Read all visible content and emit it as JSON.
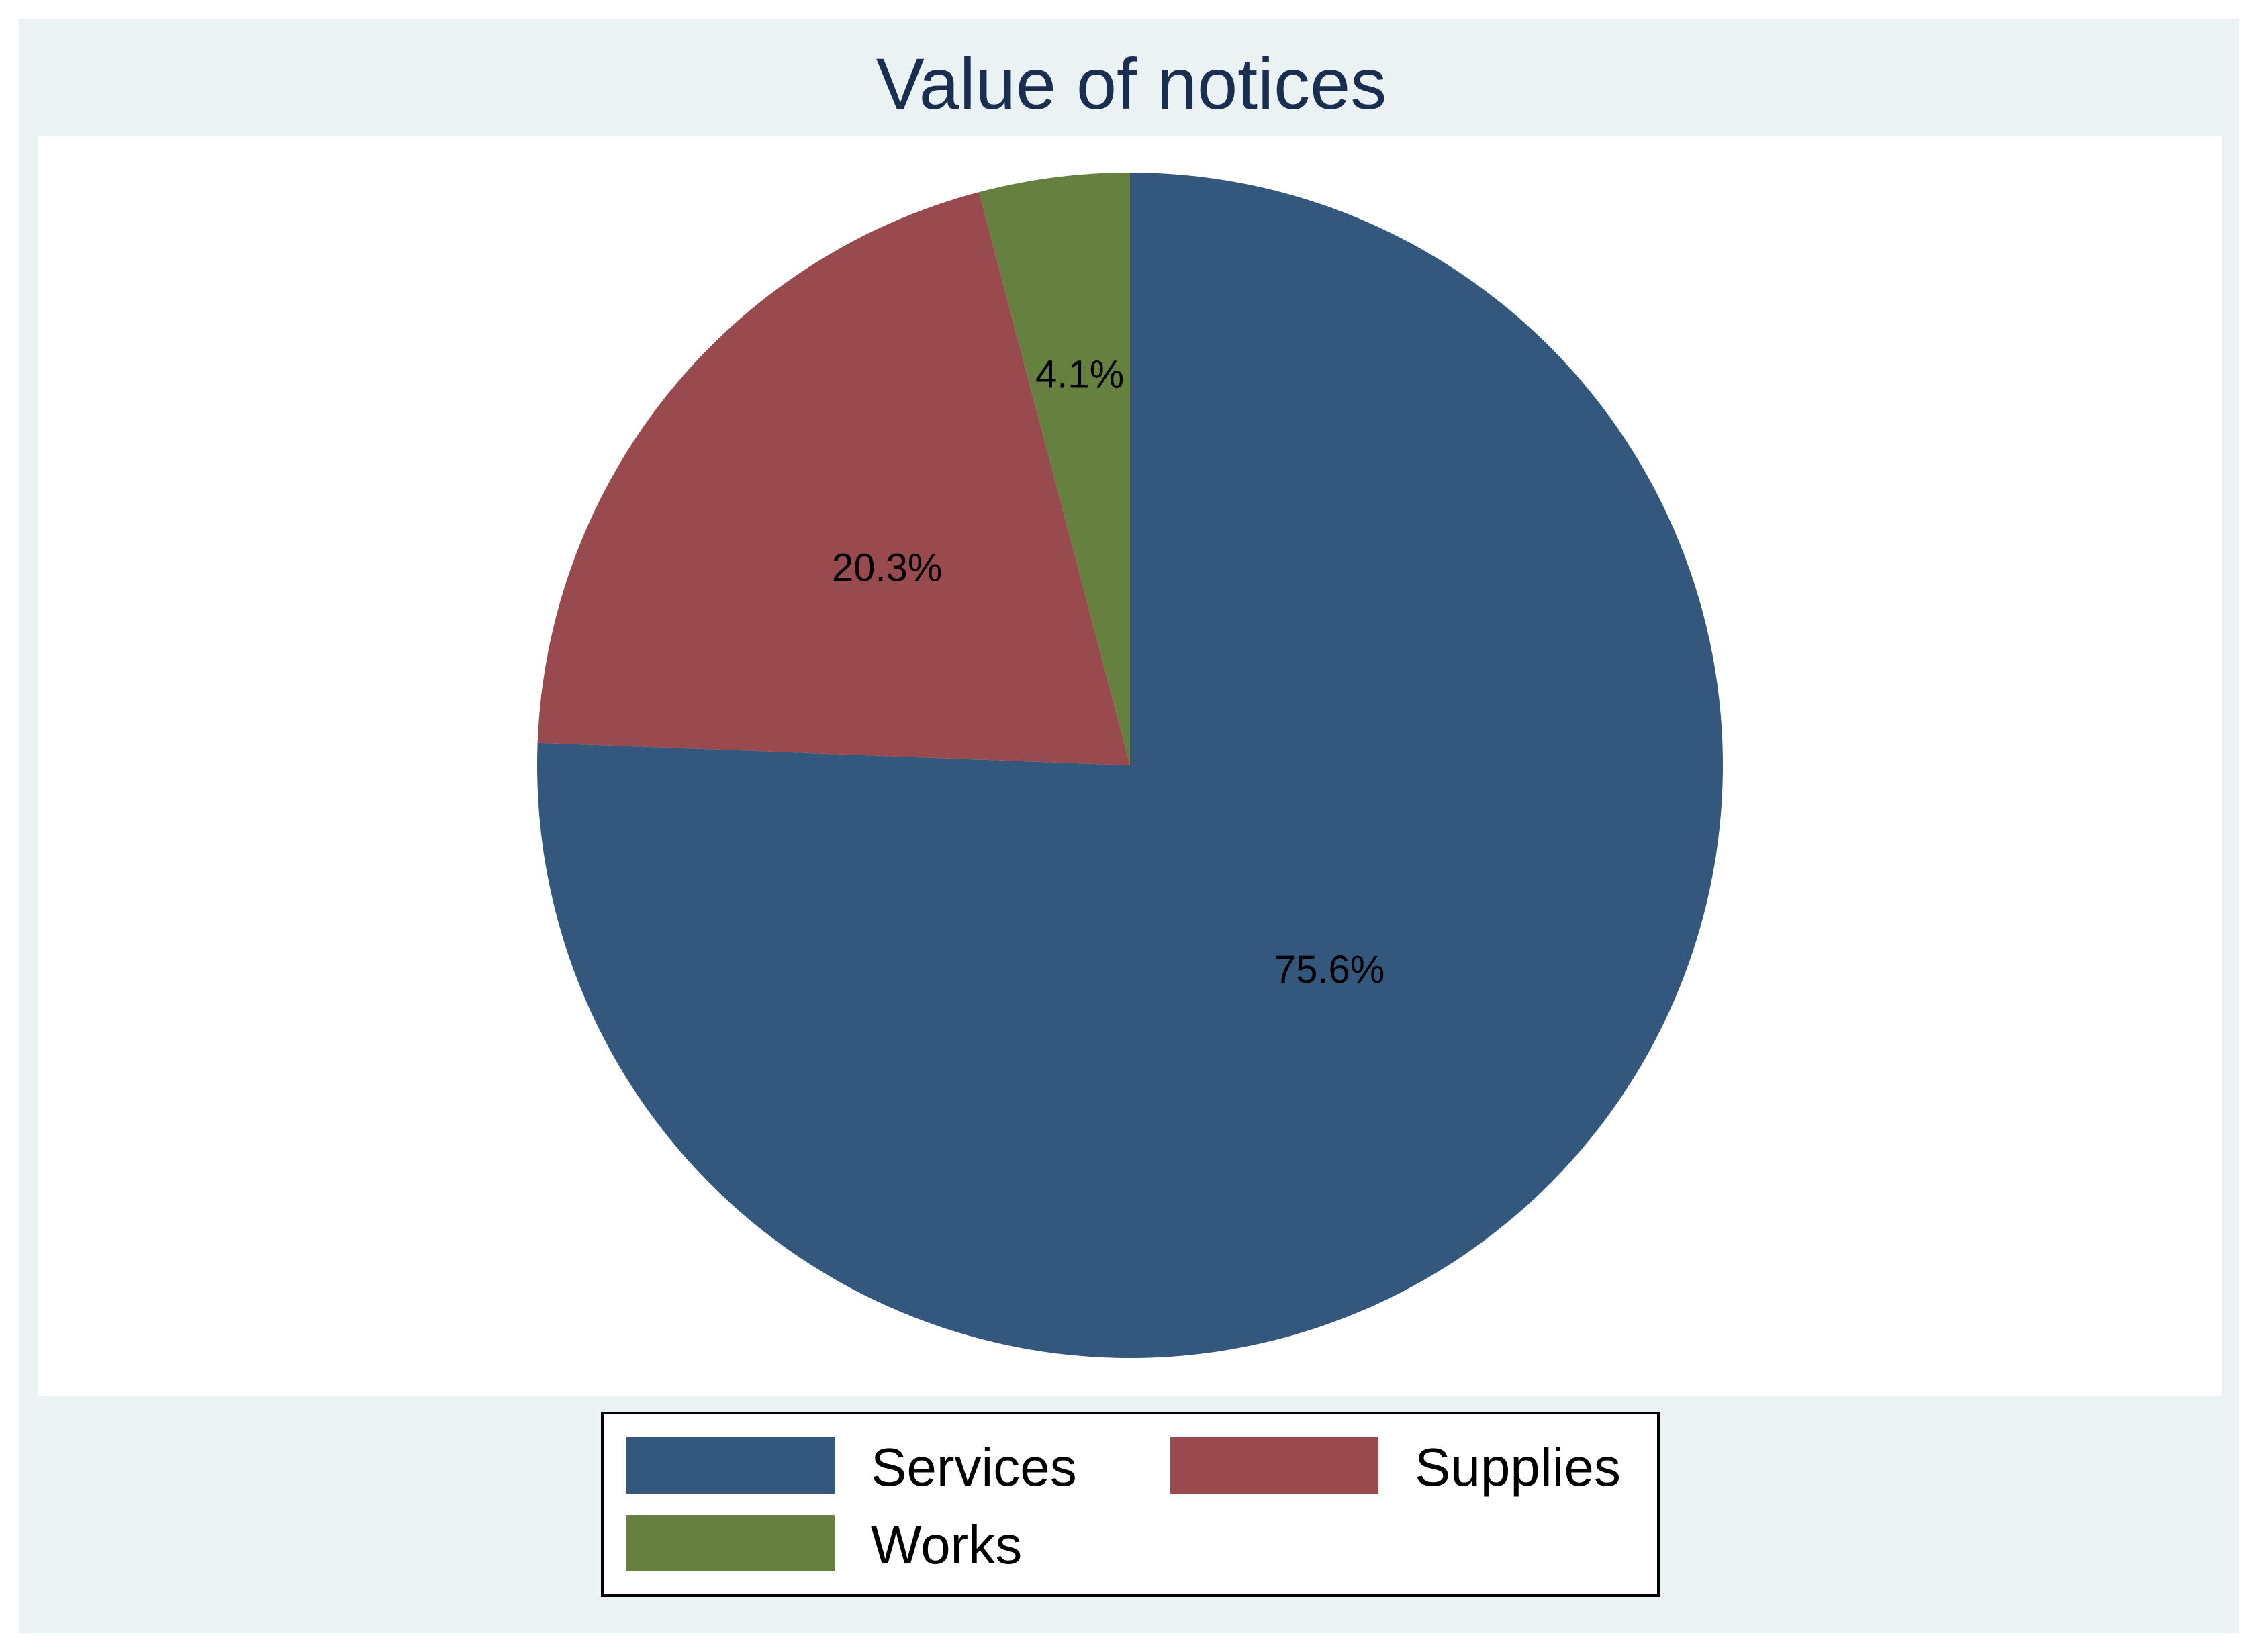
{
  "chart_data": {
    "type": "pie",
    "title": "Value of notices",
    "categories": [
      "Services",
      "Supplies",
      "Works"
    ],
    "values": [
      75.6,
      20.3,
      4.1
    ],
    "labels": [
      "75.6%",
      "20.3%",
      "4.1%"
    ],
    "colors": [
      "#34587d",
      "#984a4f",
      "#66813f"
    ],
    "start_angle": "12 o'clock",
    "direction": "clockwise",
    "legend": {
      "placement": "bottom",
      "columns": 2,
      "items": [
        "Services",
        "Supplies",
        "Works"
      ]
    }
  },
  "style": {
    "frame_background": "#eaf2f3",
    "plot_background": "#ffffff",
    "title_color": "#1a2e52"
  }
}
